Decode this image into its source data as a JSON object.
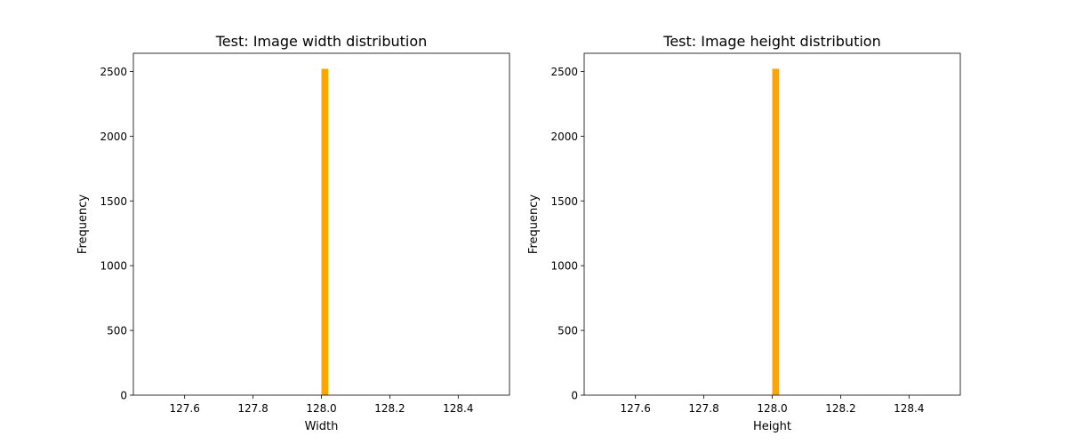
{
  "chart_data": [
    {
      "type": "bar",
      "title": "Test: Image width distribution",
      "xlabel": "Width",
      "ylabel": "Frequency",
      "xlim": [
        127.45,
        128.55
      ],
      "ylim": [
        0,
        2640
      ],
      "xticks": [
        "127.6",
        "127.8",
        "128.0",
        "128.2",
        "128.4"
      ],
      "yticks": [
        "0",
        "500",
        "1000",
        "1500",
        "2000",
        "2500"
      ],
      "bars": [
        {
          "x_start": 128.0,
          "x_end": 128.02,
          "value": 2520
        }
      ],
      "color": "#ffa500",
      "grid": false
    },
    {
      "type": "bar",
      "title": "Test: Image height distribution",
      "xlabel": "Height",
      "ylabel": "Frequency",
      "xlim": [
        127.45,
        128.55
      ],
      "ylim": [
        0,
        2640
      ],
      "xticks": [
        "127.6",
        "127.8",
        "128.0",
        "128.2",
        "128.4"
      ],
      "yticks": [
        "0",
        "500",
        "1000",
        "1500",
        "2000",
        "2500"
      ],
      "bars": [
        {
          "x_start": 128.0,
          "x_end": 128.02,
          "value": 2520
        }
      ],
      "color": "#ffa500",
      "grid": false
    }
  ]
}
